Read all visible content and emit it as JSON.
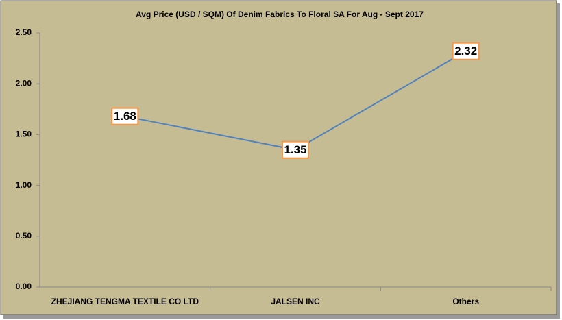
{
  "chart_data": {
    "type": "line",
    "title": "Avg Price (USD / SQM) Of Denim Fabrics To Floral SA For Aug - Sept 2017",
    "categories": [
      "ZHEJIANG TENGMA TEXTILE CO LTD",
      "JALSEN INC",
      "Others"
    ],
    "series": [
      {
        "name": "Avg Price",
        "color": "#4f81bd",
        "values": [
          1.68,
          1.35,
          2.32
        ]
      }
    ],
    "ylim": [
      0,
      2.5
    ],
    "yticks": [
      {
        "value": 0,
        "label": "0.00"
      },
      {
        "value": 0.5,
        "label": "0.50"
      },
      {
        "value": 1,
        "label": "1.00"
      },
      {
        "value": 1.5,
        "label": "1.50"
      },
      {
        "value": 2,
        "label": "2.00"
      },
      {
        "value": 2.5,
        "label": "2.50"
      }
    ],
    "grid": false
  }
}
